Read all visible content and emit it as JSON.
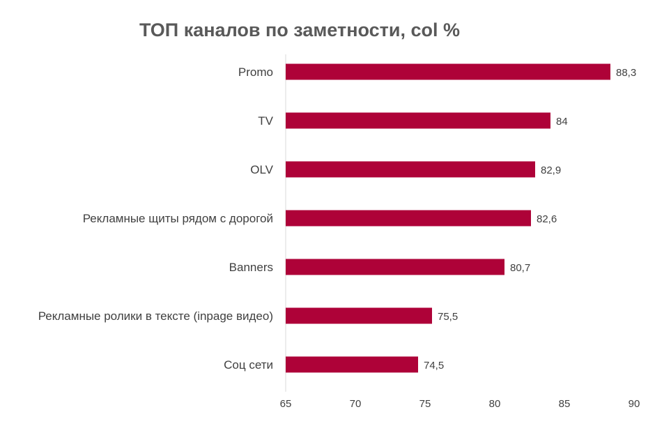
{
  "chart_data": {
    "type": "bar",
    "orientation": "horizontal",
    "title": "ТОП каналов по заметности, col %",
    "categories": [
      "Promo",
      "TV",
      "OLV",
      "Рекламные щиты рядом с дорогой",
      "Banners",
      "Рекламные ролики в тексте (inpage видео)",
      "Соц сети"
    ],
    "values": [
      88.3,
      84,
      82.9,
      82.6,
      80.7,
      75.5,
      74.5
    ],
    "value_labels": [
      "88,3",
      "84",
      "82,9",
      "82,6",
      "80,7",
      "75,5",
      "74,5"
    ],
    "xlim": [
      65,
      90
    ],
    "x_ticks": [
      65,
      70,
      75,
      80,
      85,
      90
    ],
    "x_tick_labels": [
      "65",
      "70",
      "75",
      "80",
      "85",
      "90"
    ],
    "xlabel": "",
    "ylabel": "",
    "grid": false,
    "legend": "none",
    "colors": {
      "bar": "#AE0238",
      "text": "#404040",
      "title": "#595959",
      "axis": "#D9D9D9"
    }
  }
}
